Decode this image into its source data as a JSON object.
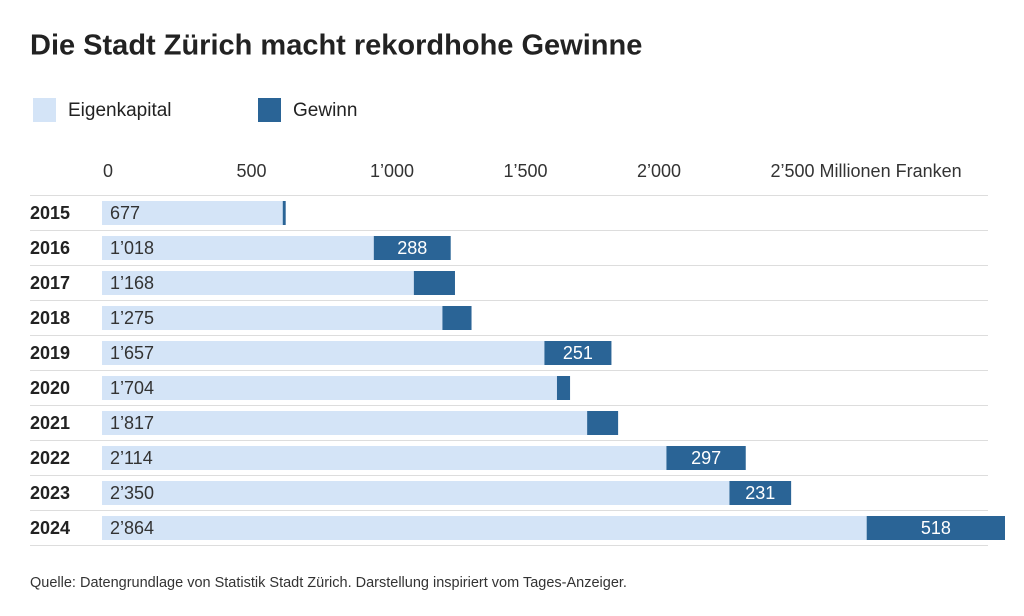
{
  "chart_data": {
    "type": "stacked-barh",
    "title": "Die Stadt Zürich macht rekordhohe Gewinne",
    "source": "Quelle: Datengrundlage von Statistik Stadt Zürich. Darstellung inspiriert vom Tages-Anzeiger.",
    "categories": [
      "2015",
      "2016",
      "2017",
      "2018",
      "2019",
      "2020",
      "2021",
      "2022",
      "2023",
      "2024"
    ],
    "series": [
      {
        "name": "Eigenkapital",
        "color": "#d4e4f7",
        "values": [
          677,
          1018,
          1168,
          1275,
          1657,
          1704,
          1817,
          2114,
          2350,
          2864
        ],
        "value_labels": [
          "677",
          "1’018",
          "1’168",
          "1’275",
          "1’657",
          "1’704",
          "1’817",
          "2’114",
          "2’350",
          "2’864"
        ]
      },
      {
        "name": "Gewinn",
        "color": "#2a6496",
        "values": [
          11,
          288,
          154,
          109,
          251,
          49,
          116,
          297,
          231,
          518
        ],
        "value_labels": [
          null,
          "288",
          null,
          null,
          "251",
          null,
          null,
          "297",
          "231",
          "518"
        ]
      }
    ],
    "xlim": [
      0,
      3382
    ],
    "xticks": [
      0,
      500,
      {
        "value": 1000,
        "label": "1’000"
      },
      {
        "value": 1500,
        "label": "1’500"
      },
      {
        "value": 2000,
        "label": "2’000"
      },
      {
        "value": 2500,
        "label": "2’500 Millionen Franken"
      }
    ],
    "legend": "top-left"
  }
}
